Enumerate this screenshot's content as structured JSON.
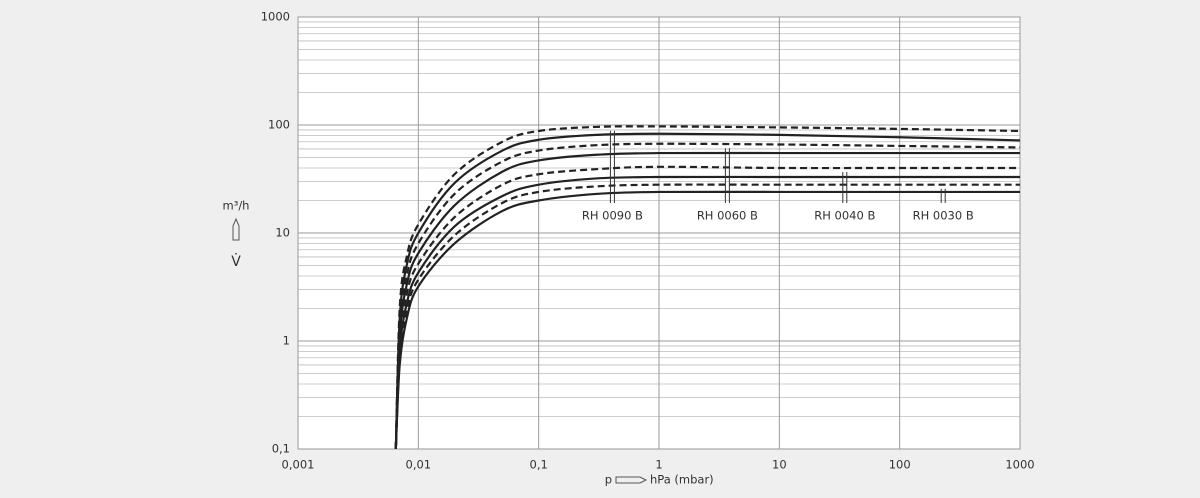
{
  "chart_data": {
    "type": "line",
    "xlabel": {
      "symbol": "p",
      "unit": "hPa (mbar)"
    },
    "ylabel": {
      "symbol": "V̇",
      "unit": "m³/h"
    },
    "xscale": "log",
    "yscale": "log",
    "xlim": [
      0.001,
      1000
    ],
    "ylim": [
      0.1,
      1000
    ],
    "xticks": [
      {
        "value": 0.001,
        "label": "0,001"
      },
      {
        "value": 0.01,
        "label": "0,01"
      },
      {
        "value": 0.1,
        "label": "0,1"
      },
      1,
      10,
      100,
      1000
    ],
    "yticks": [
      {
        "value": 0.1,
        "label": "0,1"
      },
      1,
      10,
      100,
      1000
    ],
    "grid": true,
    "x": [
      0.0065,
      0.007,
      0.008,
      0.01,
      0.02,
      0.05,
      0.1,
      0.3,
      1,
      10,
      100,
      1000
    ],
    "series": [
      {
        "color": "#222222",
        "linestyle": "dashed",
        "values": [
          0.1,
          2,
          6,
          12,
          35,
          70,
          88,
          96,
          97,
          95,
          92,
          88
        ]
      },
      {
        "color": "#222222",
        "linestyle": "solid",
        "values": [
          0.1,
          1.6,
          5,
          10,
          29,
          58,
          73,
          81,
          83,
          81,
          77,
          72
        ]
      },
      {
        "color": "#222222",
        "linestyle": "dashed",
        "values": [
          0.1,
          1.3,
          4,
          8,
          23,
          46,
          58,
          65,
          67,
          66,
          64,
          62
        ]
      },
      {
        "color": "#222222",
        "linestyle": "solid",
        "values": [
          0.1,
          1.1,
          3.3,
          6.5,
          18,
          37,
          47,
          53,
          55,
          55,
          55,
          55
        ]
      },
      {
        "color": "#222222",
        "linestyle": "dashed",
        "values": [
          0.1,
          0.9,
          2.7,
          5.2,
          14,
          28,
          35,
          39,
          41,
          40,
          40,
          40
        ]
      },
      {
        "color": "#222222",
        "linestyle": "solid",
        "values": [
          0.1,
          0.8,
          2.2,
          4.3,
          11.5,
          22,
          28,
          32,
          33,
          33,
          33,
          33
        ]
      },
      {
        "color": "#222222",
        "linestyle": "dashed",
        "values": [
          0.1,
          0.7,
          1.9,
          3.7,
          9.5,
          19,
          24,
          27,
          28,
          28,
          28,
          28
        ]
      },
      {
        "color": "#222222",
        "linestyle": "solid",
        "values": [
          0.1,
          0.6,
          1.6,
          3.2,
          8,
          16,
          20,
          23,
          24,
          24,
          24,
          24
        ]
      }
    ],
    "annotations": [
      {
        "text": "RH 0090 B",
        "x": 0.41
      },
      {
        "text": "RH 0060 B",
        "x": 3.7
      },
      {
        "text": "RH 0040 B",
        "x": 35
      },
      {
        "text": "RH 0030 B",
        "x": 230
      }
    ]
  }
}
